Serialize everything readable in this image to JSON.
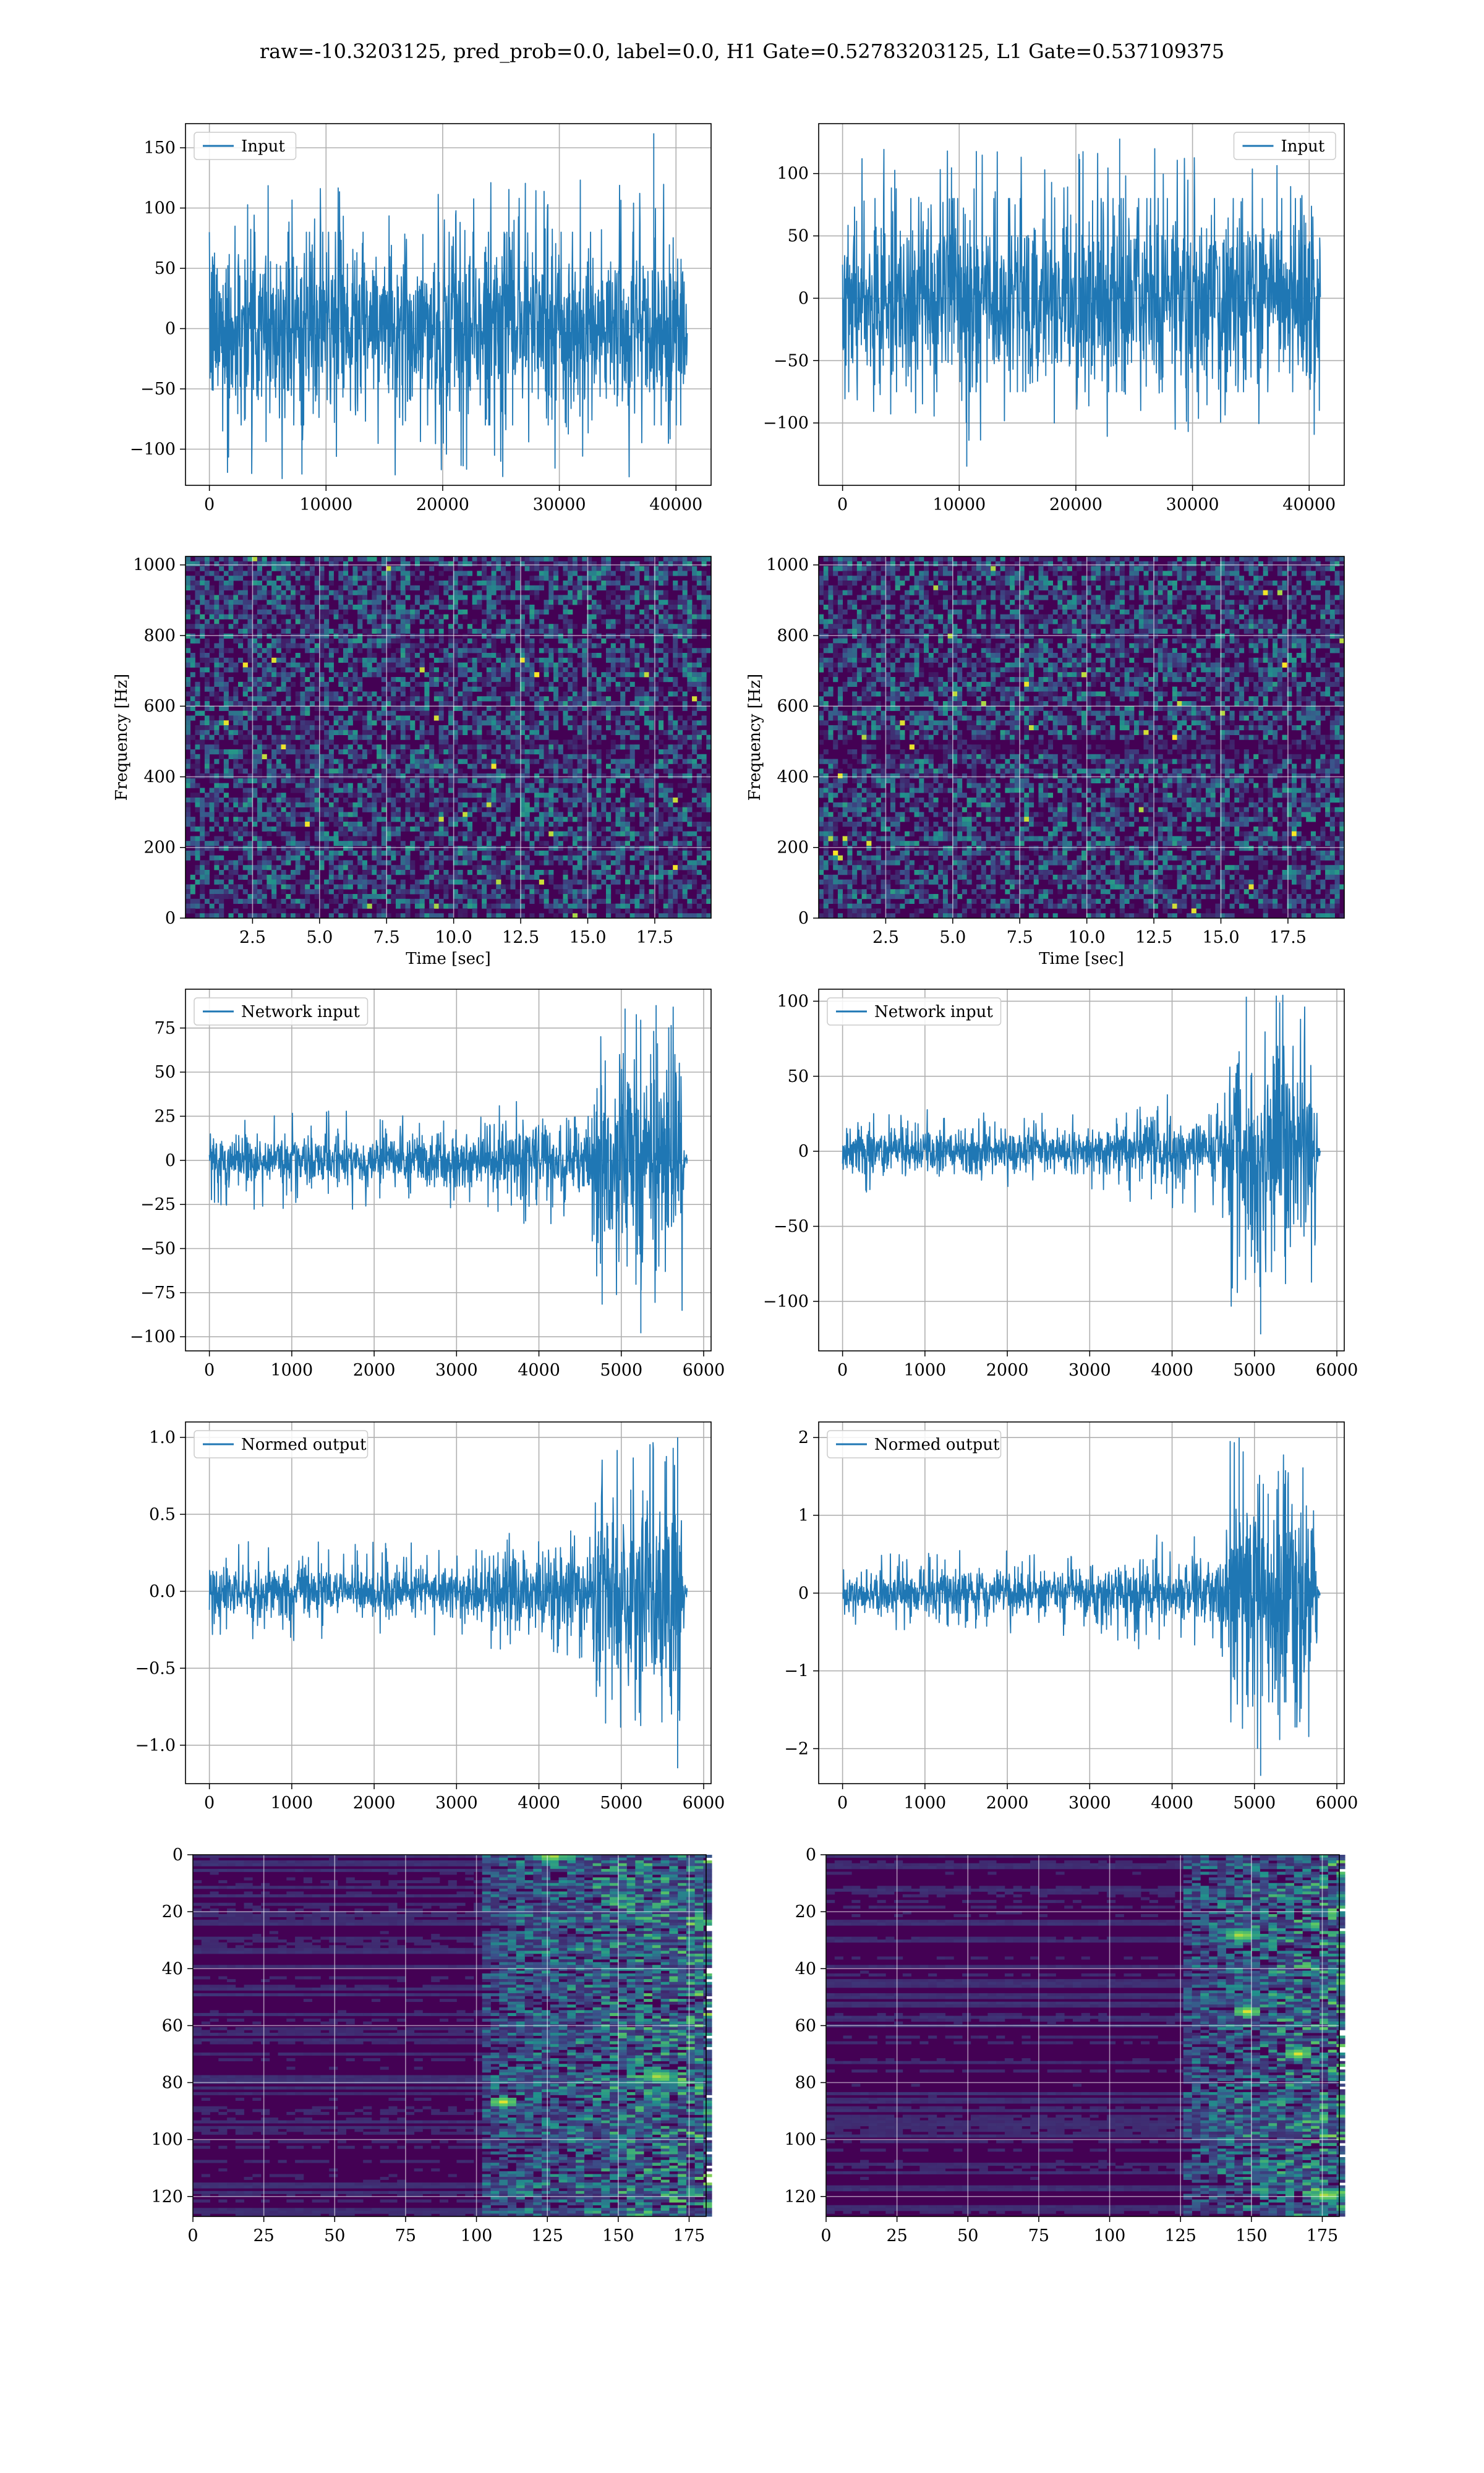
{
  "figure": {
    "title": "raw=-10.3203125, pred_prob=0.0, label=0.0, H1 Gate=0.52783203125, L1 Gate=0.537109375"
  },
  "colors": {
    "line": "#1f77b4",
    "grid": "#b0b0b0",
    "viridis_low": "#440154",
    "viridis_mid": "#21918c",
    "viridis_high": "#fde725"
  },
  "chart_data": [
    {
      "id": "input-h1",
      "type": "line",
      "legend": "Input",
      "legend_loc": "upper-left",
      "x_range": [
        0,
        40960
      ],
      "xlim": [
        -2048,
        43008
      ],
      "ylim": [
        -130,
        170
      ],
      "xticks": [
        0,
        10000,
        20000,
        30000,
        40000
      ],
      "yticks": [
        -100,
        -50,
        0,
        50,
        100,
        150
      ],
      "envelope": [
        [
          0,
          0,
          -80,
          80,
          125
        ],
        [
          0.5,
          0,
          -80,
          80,
          125
        ],
        [
          1,
          0,
          -80,
          80,
          125
        ]
      ],
      "spikes": [
        [
          0.93,
          162
        ]
      ],
      "grid": true
    },
    {
      "id": "input-l1",
      "type": "line",
      "legend": "Input",
      "legend_loc": "upper-right",
      "x_range": [
        0,
        40960
      ],
      "xlim": [
        -2048,
        43008
      ],
      "ylim": [
        -150,
        140
      ],
      "xticks": [
        0,
        10000,
        20000,
        30000,
        40000
      ],
      "yticks": [
        -100,
        -50,
        0,
        50,
        100
      ],
      "envelope": [
        [
          0,
          0,
          -75,
          80,
          120
        ],
        [
          0.5,
          0,
          -75,
          80,
          120
        ],
        [
          1,
          0,
          -75,
          80,
          120
        ]
      ],
      "spikes": [
        [
          0.26,
          -135
        ],
        [
          0.58,
          128
        ],
        [
          0.28,
          118
        ]
      ],
      "grid": true
    },
    {
      "id": "spec-h1",
      "type": "heatmap",
      "variant": "spectrogram",
      "colormap": "viridis",
      "xlabel": "Time [sec]",
      "ylabel": "Frequency [Hz]",
      "xlim": [
        0,
        19.6
      ],
      "ylim": [
        0,
        1024
      ],
      "xticks": [
        2.5,
        5.0,
        7.5,
        10.0,
        12.5,
        15.0,
        17.5
      ],
      "yticks": [
        0,
        200,
        400,
        600,
        800,
        1000
      ],
      "dark_bands_hz": [
        500,
        20
      ],
      "grid": true
    },
    {
      "id": "spec-l1",
      "type": "heatmap",
      "variant": "spectrogram",
      "colormap": "viridis",
      "xlabel": "Time [sec]",
      "ylabel": "Frequency [Hz]",
      "xlim": [
        0,
        19.6
      ],
      "ylim": [
        0,
        1024
      ],
      "xticks": [
        2.5,
        5.0,
        7.5,
        10.0,
        12.5,
        15.0,
        17.5
      ],
      "yticks": [
        0,
        200,
        400,
        600,
        800,
        1000
      ],
      "dark_bands_hz": [
        500,
        480,
        20
      ],
      "grid": true
    },
    {
      "id": "network-input-h1",
      "type": "line",
      "legend": "Network input",
      "legend_loc": "upper-left",
      "x_range": [
        0,
        5800
      ],
      "xlim": [
        -290,
        6090
      ],
      "ylim": [
        -108,
        97
      ],
      "xticks": [
        0,
        1000,
        2000,
        3000,
        4000,
        5000,
        6000
      ],
      "yticks": [
        -100,
        -75,
        -50,
        -25,
        0,
        25,
        50,
        75
      ],
      "envelope": [
        [
          0,
          0,
          -15,
          15,
          28
        ],
        [
          0.55,
          0,
          -15,
          15,
          28
        ],
        [
          0.6,
          0,
          -20,
          22,
          35
        ],
        [
          0.8,
          0,
          -25,
          25,
          40
        ],
        [
          0.81,
          0,
          -60,
          60,
          88
        ],
        [
          0.99,
          0,
          -60,
          60,
          88
        ],
        [
          0.995,
          0,
          -3,
          3,
          5
        ],
        [
          1,
          0,
          -3,
          3,
          5
        ]
      ],
      "spikes": [
        [
          0.903,
          -98
        ],
        [
          0.935,
          88
        ],
        [
          0.87,
          86
        ]
      ],
      "grid": true
    },
    {
      "id": "network-input-l1",
      "type": "line",
      "legend": "Network input",
      "legend_loc": "upper-left",
      "x_range": [
        0,
        5800
      ],
      "xlim": [
        -290,
        6090
      ],
      "ylim": [
        -133,
        108
      ],
      "xticks": [
        0,
        1000,
        2000,
        3000,
        4000,
        5000,
        6000
      ],
      "yticks": [
        -100,
        -50,
        0,
        50,
        100
      ],
      "envelope": [
        [
          0,
          0,
          -15,
          15,
          28
        ],
        [
          0.55,
          0,
          -15,
          15,
          28
        ],
        [
          0.6,
          0,
          -20,
          22,
          35
        ],
        [
          0.8,
          0,
          -25,
          25,
          45
        ],
        [
          0.81,
          0,
          -70,
          70,
          105
        ],
        [
          0.99,
          0,
          -70,
          70,
          105
        ],
        [
          0.995,
          0,
          -3,
          3,
          5
        ],
        [
          1,
          0,
          -3,
          3,
          5
        ]
      ],
      "spikes": [
        [
          0.875,
          -122
        ],
        [
          0.845,
          103
        ]
      ],
      "grid": true
    },
    {
      "id": "normed-output-h1",
      "type": "line",
      "legend": "Normed output",
      "legend_loc": "upper-left",
      "x_range": [
        0,
        5800
      ],
      "xlim": [
        -290,
        6090
      ],
      "ylim": [
        -1.25,
        1.1
      ],
      "xticks": [
        0,
        1000,
        2000,
        3000,
        4000,
        5000,
        6000
      ],
      "yticks": [
        -1.0,
        -0.5,
        0.0,
        0.5,
        1.0
      ],
      "envelope": [
        [
          0,
          0,
          -0.17,
          0.17,
          0.33
        ],
        [
          0.55,
          0,
          -0.17,
          0.17,
          0.33
        ],
        [
          0.6,
          0,
          -0.24,
          0.25,
          0.4
        ],
        [
          0.8,
          0,
          -0.3,
          0.3,
          0.5
        ],
        [
          0.81,
          0,
          -0.75,
          0.7,
          1.0
        ],
        [
          0.99,
          0,
          -0.75,
          0.7,
          1.0
        ],
        [
          0.995,
          0,
          -0.04,
          0.04,
          0.06
        ],
        [
          1,
          0,
          -0.04,
          0.04,
          0.06
        ]
      ],
      "spikes": [
        [
          0.98,
          -1.15
        ],
        [
          0.98,
          1.0
        ]
      ],
      "grid": true
    },
    {
      "id": "normed-output-l1",
      "type": "line",
      "legend": "Normed output",
      "legend_loc": "upper-left",
      "x_range": [
        0,
        5800
      ],
      "xlim": [
        -290,
        6090
      ],
      "ylim": [
        -2.45,
        2.2
      ],
      "xticks": [
        0,
        1000,
        2000,
        3000,
        4000,
        5000,
        6000
      ],
      "yticks": [
        -2,
        -1,
        0,
        1,
        2
      ],
      "envelope": [
        [
          0,
          0,
          -0.3,
          0.3,
          0.55
        ],
        [
          0.55,
          0,
          -0.3,
          0.3,
          0.55
        ],
        [
          0.6,
          0,
          -0.4,
          0.42,
          0.7
        ],
        [
          0.8,
          0,
          -0.5,
          0.5,
          0.9
        ],
        [
          0.81,
          0,
          -1.4,
          1.4,
          2.0
        ],
        [
          0.99,
          0,
          -1.4,
          1.4,
          2.0
        ],
        [
          0.995,
          0,
          -0.06,
          0.06,
          0.1
        ],
        [
          1,
          0,
          -0.06,
          0.06,
          0.1
        ]
      ],
      "spikes": [
        [
          0.875,
          -2.35
        ],
        [
          0.83,
          2.0
        ]
      ],
      "grid": true
    },
    {
      "id": "features-h1",
      "type": "heatmap",
      "variant": "features",
      "colormap": "viridis",
      "xlim": [
        0,
        181
      ],
      "ylim": [
        127,
        0
      ],
      "xticks": [
        0,
        25,
        50,
        75,
        100,
        125,
        150,
        175
      ],
      "yticks": [
        0,
        20,
        40,
        60,
        80,
        100,
        120
      ],
      "onset_x": 100,
      "hot_spots": [
        [
          108,
          87
        ],
        [
          125,
          0
        ],
        [
          163,
          78
        ]
      ],
      "grid": true
    },
    {
      "id": "features-l1",
      "type": "heatmap",
      "variant": "features",
      "colormap": "viridis",
      "xlim": [
        0,
        181
      ],
      "ylim": [
        127,
        0
      ],
      "xticks": [
        0,
        25,
        50,
        75,
        100,
        125,
        150,
        175
      ],
      "yticks": [
        0,
        20,
        40,
        60,
        80,
        100,
        120
      ],
      "onset_x": 125,
      "hot_spots": [
        [
          147,
          55
        ],
        [
          165,
          70
        ],
        [
          145,
          28
        ],
        [
          175,
          120
        ]
      ],
      "grid": true
    }
  ]
}
